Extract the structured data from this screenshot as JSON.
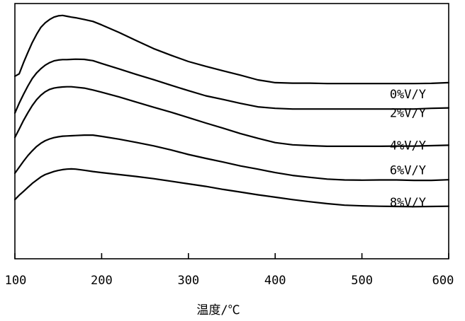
{
  "chart_data": {
    "type": "line",
    "xlabel": "温度/℃",
    "ylabel": "",
    "xlim": [
      100,
      600
    ],
    "ylim": [
      0,
      1
    ],
    "grid": false,
    "xticks": [
      100,
      200,
      300,
      400,
      500,
      600
    ],
    "yticks_shown": false,
    "x": [
      100,
      105,
      110,
      115,
      120,
      125,
      130,
      135,
      140,
      145,
      150,
      155,
      160,
      165,
      170,
      180,
      190,
      200,
      220,
      240,
      260,
      280,
      300,
      320,
      340,
      360,
      380,
      400,
      420,
      440,
      460,
      480,
      500,
      520,
      540,
      560,
      580,
      600
    ],
    "series": [
      {
        "name": "0%V/Y",
        "label_at": 0.64,
        "values": [
          0.722,
          0.733,
          0.785,
          0.833,
          0.878,
          0.916,
          0.949,
          0.97,
          0.985,
          0.996,
          1.002,
          1.004,
          1.0,
          0.996,
          0.993,
          0.985,
          0.976,
          0.96,
          0.925,
          0.887,
          0.85,
          0.819,
          0.79,
          0.768,
          0.747,
          0.727,
          0.705,
          0.692,
          0.69,
          0.69,
          0.688,
          0.688,
          0.688,
          0.688,
          0.688,
          0.688,
          0.689,
          0.692
        ]
      },
      {
        "name": "2%V/Y",
        "label_at": 0.553,
        "values": [
          0.551,
          0.597,
          0.638,
          0.677,
          0.711,
          0.737,
          0.757,
          0.773,
          0.785,
          0.793,
          0.797,
          0.799,
          0.799,
          0.8,
          0.801,
          0.8,
          0.794,
          0.781,
          0.756,
          0.73,
          0.706,
          0.68,
          0.655,
          0.631,
          0.614,
          0.596,
          0.58,
          0.573,
          0.57,
          0.57,
          0.57,
          0.57,
          0.57,
          0.57,
          0.57,
          0.57,
          0.573,
          0.575
        ]
      },
      {
        "name": "4%V/Y",
        "label_at": 0.402,
        "values": [
          0.438,
          0.477,
          0.517,
          0.553,
          0.586,
          0.613,
          0.634,
          0.65,
          0.661,
          0.667,
          0.67,
          0.672,
          0.673,
          0.673,
          0.671,
          0.667,
          0.658,
          0.648,
          0.626,
          0.602,
          0.578,
          0.555,
          0.53,
          0.505,
          0.481,
          0.456,
          0.434,
          0.414,
          0.404,
          0.4,
          0.397,
          0.397,
          0.397,
          0.397,
          0.398,
          0.398,
          0.4,
          0.402
        ]
      },
      {
        "name": "6%V/Y",
        "label_at": 0.287,
        "values": [
          0.272,
          0.3,
          0.328,
          0.354,
          0.376,
          0.396,
          0.411,
          0.423,
          0.431,
          0.437,
          0.441,
          0.444,
          0.445,
          0.446,
          0.447,
          0.449,
          0.449,
          0.443,
          0.43,
          0.415,
          0.399,
          0.38,
          0.359,
          0.341,
          0.324,
          0.306,
          0.291,
          0.275,
          0.262,
          0.253,
          0.245,
          0.241,
          0.24,
          0.241,
          0.241,
          0.239,
          0.239,
          0.242
        ]
      },
      {
        "name": "8%V/Y",
        "label_at": 0.138,
        "values": [
          0.15,
          0.17,
          0.188,
          0.207,
          0.225,
          0.24,
          0.255,
          0.266,
          0.273,
          0.28,
          0.285,
          0.289,
          0.291,
          0.292,
          0.291,
          0.286,
          0.28,
          0.275,
          0.266,
          0.257,
          0.247,
          0.235,
          0.223,
          0.211,
          0.197,
          0.185,
          0.172,
          0.161,
          0.15,
          0.14,
          0.131,
          0.124,
          0.121,
          0.119,
          0.118,
          0.117,
          0.118,
          0.119
        ]
      }
    ]
  }
}
